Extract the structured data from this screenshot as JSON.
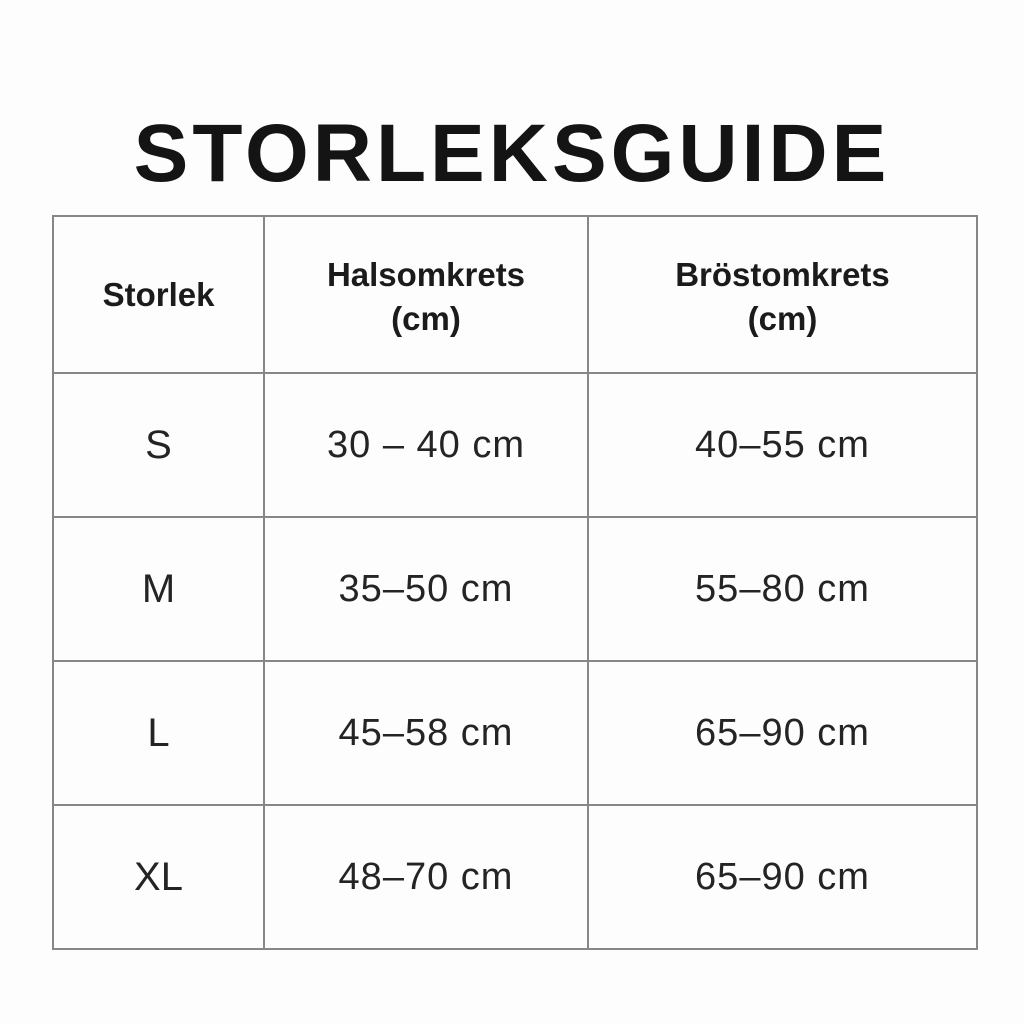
{
  "page": {
    "title": "STORLEKSGUIDE"
  },
  "table": {
    "columns": [
      {
        "label": "Storlek",
        "unit": ""
      },
      {
        "label": "Halsomkrets",
        "unit": "(cm)"
      },
      {
        "label": "Bröstomkrets",
        "unit": "(cm)"
      }
    ],
    "rows": [
      {
        "size": "S",
        "neck": "30 – 40 cm",
        "chest": "40–55 cm"
      },
      {
        "size": "M",
        "neck": "35–50 cm",
        "chest": "55–80 cm"
      },
      {
        "size": "L",
        "neck": "45–58 cm",
        "chest": "65–90 cm"
      },
      {
        "size": "XL",
        "neck": "48–70 cm",
        "chest": "65–90 cm"
      }
    ]
  }
}
